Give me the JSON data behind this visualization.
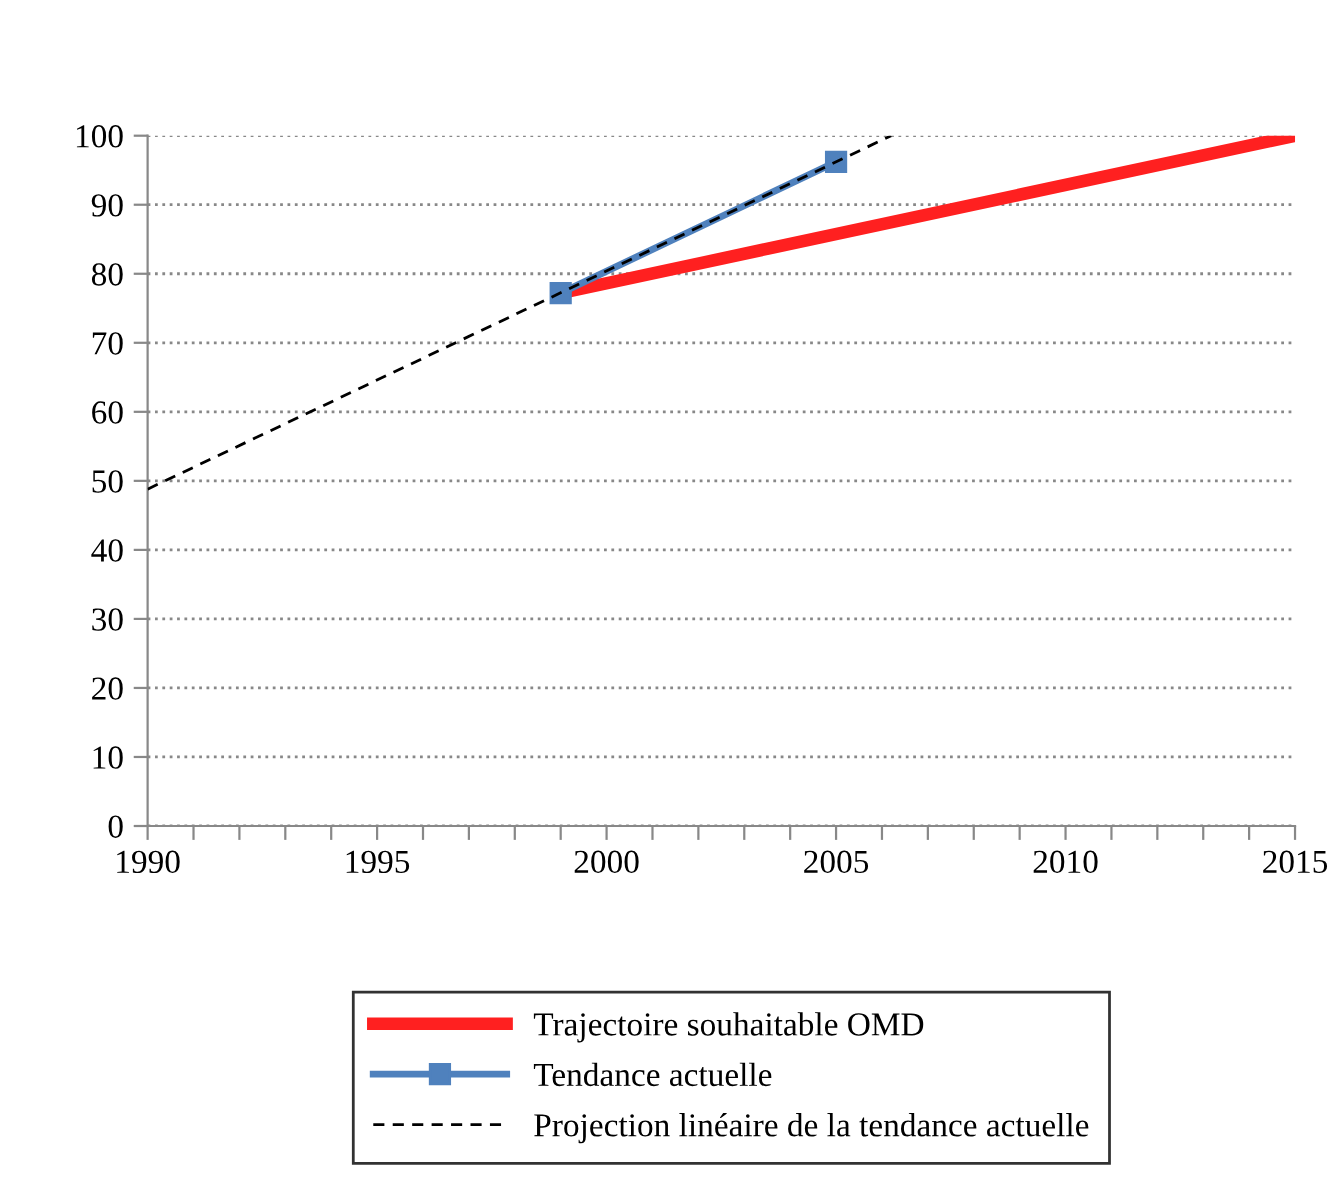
{
  "chart_data": {
    "type": "line",
    "xlim": [
      1990,
      2015
    ],
    "xticks": [
      1990,
      {
        "value": 1991,
        "label": null
      },
      {
        "value": 1992,
        "label": null
      },
      {
        "value": 1993,
        "label": null
      },
      {
        "value": 1994,
        "label": null
      },
      1995,
      {
        "value": 1996,
        "label": null
      },
      {
        "value": 1997,
        "label": null
      },
      {
        "value": 1998,
        "label": null
      },
      {
        "value": 1999,
        "label": null
      },
      2000,
      {
        "value": 2001,
        "label": null
      },
      {
        "value": 2002,
        "label": null
      },
      {
        "value": 2003,
        "label": null
      },
      {
        "value": 2004,
        "label": null
      },
      2005,
      {
        "value": 2006,
        "label": null
      },
      {
        "value": 2007,
        "label": null
      },
      {
        "value": 2008,
        "label": null
      },
      {
        "value": 2009,
        "label": null
      },
      2010,
      {
        "value": 2011,
        "label": null
      },
      {
        "value": 2012,
        "label": null
      },
      {
        "value": 2013,
        "label": null
      },
      {
        "value": 2014,
        "label": null
      },
      2015
    ],
    "ylim": [
      0,
      100
    ],
    "yticks": [
      0,
      10,
      20,
      30,
      40,
      50,
      60,
      70,
      80,
      90,
      100
    ],
    "grid": "y",
    "legend": "bottom",
    "series": [
      {
        "name": "Trajectoire souhaitable OMD",
        "color": "#ff2020",
        "x": [
          1999,
          2015
        ],
        "values": [
          77.2,
          100
        ],
        "marker": "none",
        "line_style": "solid"
      },
      {
        "name": "Tendance actuelle",
        "color": "#4f81bd",
        "x": [
          1999,
          2005
        ],
        "values": [
          77.2,
          96.2
        ],
        "marker": "square",
        "line_style": "solid"
      },
      {
        "name": "Projection linéaire de la tendance actuelle",
        "color": "#000000",
        "x": [
          1990,
          2006.2
        ],
        "values": [
          48.8,
          100
        ],
        "marker": "none",
        "line_style": "dashed"
      }
    ]
  }
}
